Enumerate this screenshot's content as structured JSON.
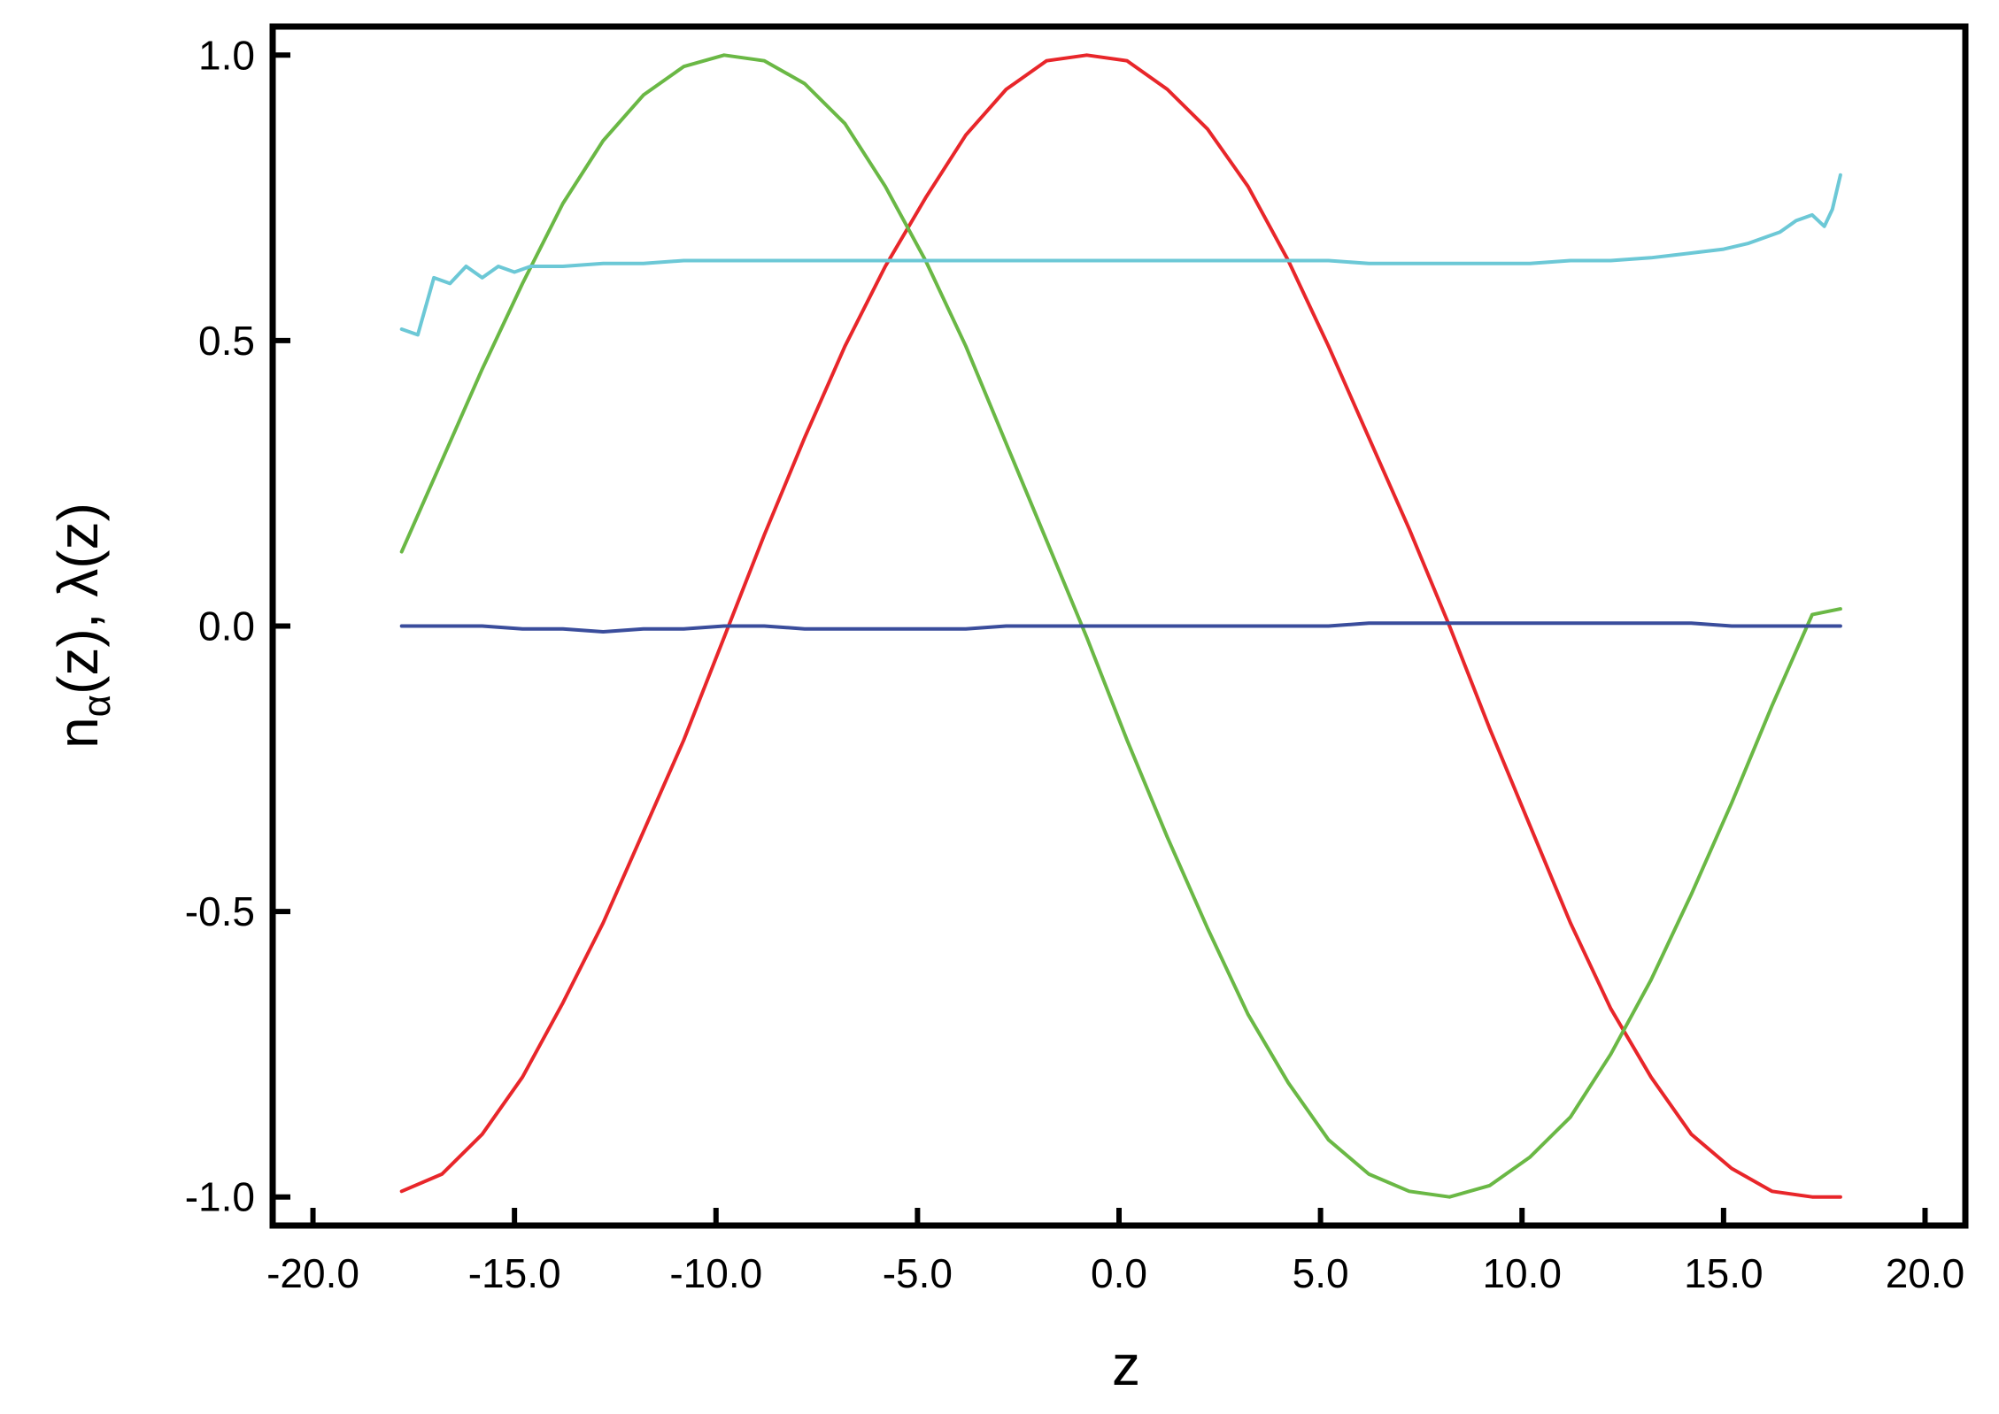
{
  "chart_data": {
    "type": "line",
    "title": "",
    "xlabel": "z",
    "ylabel": {
      "base": "n",
      "subscript": "α",
      "rest": "(z), λ(z)"
    },
    "xlim": [
      -21.0,
      21.0
    ],
    "ylim": [
      -1.05,
      1.05
    ],
    "xticks": [
      -20.0,
      -15.0,
      -10.0,
      -5.0,
      0.0,
      5.0,
      10.0,
      15.0,
      20.0
    ],
    "xtick_labels": [
      "-20.0",
      "-15.0",
      "-10.0",
      "-5.0",
      "0.0",
      "5.0",
      "10.0",
      "15.0",
      "20.0"
    ],
    "yticks": [
      -1.0,
      -0.5,
      0.0,
      0.5,
      1.0
    ],
    "ytick_labels": [
      "-1.0",
      "-0.5",
      "0.0",
      "0.5",
      "1.0"
    ],
    "grid": false,
    "legend": "none",
    "series": [
      {
        "color": "#e8262a",
        "points": [
          [
            -17.8,
            -0.99
          ],
          [
            -16.8,
            -0.96
          ],
          [
            -15.8,
            -0.89
          ],
          [
            -14.8,
            -0.79
          ],
          [
            -13.8,
            -0.66
          ],
          [
            -12.8,
            -0.52
          ],
          [
            -11.8,
            -0.36
          ],
          [
            -10.8,
            -0.2
          ],
          [
            -9.8,
            -0.02
          ],
          [
            -8.8,
            0.16
          ],
          [
            -7.8,
            0.33
          ],
          [
            -6.8,
            0.49
          ],
          [
            -5.8,
            0.63
          ],
          [
            -4.8,
            0.75
          ],
          [
            -3.8,
            0.86
          ],
          [
            -2.8,
            0.94
          ],
          [
            -1.8,
            0.99
          ],
          [
            -0.8,
            1.0
          ],
          [
            0.2,
            0.99
          ],
          [
            1.2,
            0.94
          ],
          [
            2.2,
            0.87
          ],
          [
            3.2,
            0.77
          ],
          [
            4.2,
            0.64
          ],
          [
            5.2,
            0.49
          ],
          [
            6.2,
            0.33
          ],
          [
            7.2,
            0.17
          ],
          [
            8.2,
            0.0
          ],
          [
            9.2,
            -0.18
          ],
          [
            10.2,
            -0.35
          ],
          [
            11.2,
            -0.52
          ],
          [
            12.2,
            -0.67
          ],
          [
            13.2,
            -0.79
          ],
          [
            14.2,
            -0.89
          ],
          [
            15.2,
            -0.95
          ],
          [
            16.2,
            -0.99
          ],
          [
            17.2,
            -1.0
          ],
          [
            17.9,
            -1.0
          ]
        ]
      },
      {
        "color": "#6ab845",
        "points": [
          [
            -17.8,
            0.13
          ],
          [
            -16.8,
            0.29
          ],
          [
            -15.8,
            0.45
          ],
          [
            -14.8,
            0.6
          ],
          [
            -13.8,
            0.74
          ],
          [
            -12.8,
            0.85
          ],
          [
            -11.8,
            0.93
          ],
          [
            -10.8,
            0.98
          ],
          [
            -9.8,
            1.0
          ],
          [
            -8.8,
            0.99
          ],
          [
            -7.8,
            0.95
          ],
          [
            -6.8,
            0.88
          ],
          [
            -5.8,
            0.77
          ],
          [
            -4.8,
            0.64
          ],
          [
            -3.8,
            0.49
          ],
          [
            -2.8,
            0.32
          ],
          [
            -1.8,
            0.15
          ],
          [
            -0.8,
            -0.02
          ],
          [
            0.2,
            -0.2
          ],
          [
            1.2,
            -0.37
          ],
          [
            2.2,
            -0.53
          ],
          [
            3.2,
            -0.68
          ],
          [
            4.2,
            -0.8
          ],
          [
            5.2,
            -0.9
          ],
          [
            6.2,
            -0.96
          ],
          [
            7.2,
            -0.99
          ],
          [
            8.2,
            -1.0
          ],
          [
            9.2,
            -0.98
          ],
          [
            10.2,
            -0.93
          ],
          [
            11.2,
            -0.86
          ],
          [
            12.2,
            -0.75
          ],
          [
            13.2,
            -0.62
          ],
          [
            14.2,
            -0.47
          ],
          [
            15.2,
            -0.31
          ],
          [
            16.2,
            -0.14
          ],
          [
            17.2,
            0.02
          ],
          [
            17.9,
            0.03
          ]
        ]
      },
      {
        "color": "#6cc8d6",
        "points": [
          [
            -17.8,
            0.52
          ],
          [
            -17.4,
            0.51
          ],
          [
            -17.0,
            0.61
          ],
          [
            -16.6,
            0.6
          ],
          [
            -16.2,
            0.63
          ],
          [
            -15.8,
            0.61
          ],
          [
            -15.4,
            0.63
          ],
          [
            -15.0,
            0.62
          ],
          [
            -14.6,
            0.63
          ],
          [
            -14.2,
            0.63
          ],
          [
            -13.8,
            0.63
          ],
          [
            -12.8,
            0.635
          ],
          [
            -11.8,
            0.635
          ],
          [
            -10.8,
            0.64
          ],
          [
            -9.8,
            0.64
          ],
          [
            -8.8,
            0.64
          ],
          [
            -7.8,
            0.64
          ],
          [
            -6.8,
            0.64
          ],
          [
            -5.8,
            0.64
          ],
          [
            -4.8,
            0.64
          ],
          [
            -3.8,
            0.64
          ],
          [
            -2.8,
            0.64
          ],
          [
            -1.8,
            0.64
          ],
          [
            -0.8,
            0.64
          ],
          [
            0.2,
            0.64
          ],
          [
            1.2,
            0.64
          ],
          [
            2.2,
            0.64
          ],
          [
            3.2,
            0.64
          ],
          [
            4.2,
            0.64
          ],
          [
            5.2,
            0.64
          ],
          [
            6.2,
            0.635
          ],
          [
            7.2,
            0.635
          ],
          [
            8.2,
            0.635
          ],
          [
            9.2,
            0.635
          ],
          [
            10.2,
            0.635
          ],
          [
            11.2,
            0.64
          ],
          [
            12.2,
            0.64
          ],
          [
            13.2,
            0.645
          ],
          [
            13.8,
            0.65
          ],
          [
            14.4,
            0.655
          ],
          [
            15.0,
            0.66
          ],
          [
            15.6,
            0.67
          ],
          [
            16.0,
            0.68
          ],
          [
            16.4,
            0.69
          ],
          [
            16.8,
            0.71
          ],
          [
            17.2,
            0.72
          ],
          [
            17.5,
            0.7
          ],
          [
            17.7,
            0.73
          ],
          [
            17.9,
            0.79
          ]
        ]
      },
      {
        "color": "#3a4d9c",
        "points": [
          [
            -17.8,
            0.0
          ],
          [
            -16.8,
            0.0
          ],
          [
            -15.8,
            0.0
          ],
          [
            -14.8,
            -0.005
          ],
          [
            -13.8,
            -0.005
          ],
          [
            -12.8,
            -0.01
          ],
          [
            -11.8,
            -0.005
          ],
          [
            -10.8,
            -0.005
          ],
          [
            -9.8,
            0.0
          ],
          [
            -8.8,
            0.0
          ],
          [
            -7.8,
            -0.005
          ],
          [
            -6.8,
            -0.005
          ],
          [
            -5.8,
            -0.005
          ],
          [
            -4.8,
            -0.005
          ],
          [
            -3.8,
            -0.005
          ],
          [
            -2.8,
            0.0
          ],
          [
            -1.8,
            0.0
          ],
          [
            -0.8,
            0.0
          ],
          [
            0.2,
            0.0
          ],
          [
            1.2,
            0.0
          ],
          [
            2.2,
            0.0
          ],
          [
            3.2,
            0.0
          ],
          [
            4.2,
            0.0
          ],
          [
            5.2,
            0.0
          ],
          [
            6.2,
            0.005
          ],
          [
            7.2,
            0.005
          ],
          [
            8.2,
            0.005
          ],
          [
            9.2,
            0.005
          ],
          [
            10.2,
            0.005
          ],
          [
            11.2,
            0.005
          ],
          [
            12.2,
            0.005
          ],
          [
            13.2,
            0.005
          ],
          [
            14.2,
            0.005
          ],
          [
            15.2,
            0.0
          ],
          [
            16.2,
            0.0
          ],
          [
            17.2,
            0.0
          ],
          [
            17.9,
            0.0
          ]
        ]
      }
    ]
  }
}
